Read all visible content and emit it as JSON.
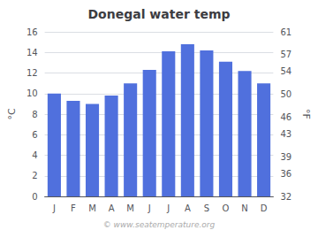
{
  "chart_data": {
    "type": "bar",
    "title": "Donegal water temp",
    "categories": [
      "J",
      "F",
      "M",
      "A",
      "M",
      "J",
      "J",
      "A",
      "S",
      "O",
      "N",
      "D"
    ],
    "values": [
      10.0,
      9.3,
      9.0,
      9.8,
      11.0,
      12.3,
      14.1,
      14.8,
      14.2,
      13.1,
      12.2,
      11.0
    ],
    "ylim": [
      0,
      16
    ],
    "yticks": [
      0,
      2,
      4,
      6,
      8,
      10,
      12,
      14,
      16
    ],
    "y2lim": [
      32,
      61
    ],
    "y2ticks": [
      32,
      36,
      39,
      43,
      46,
      50,
      54,
      57,
      61
    ],
    "ylabel": "°C",
    "y2label": "°F",
    "grid": true,
    "annotations": [
      "© www.seatemperature.org"
    ]
  }
}
